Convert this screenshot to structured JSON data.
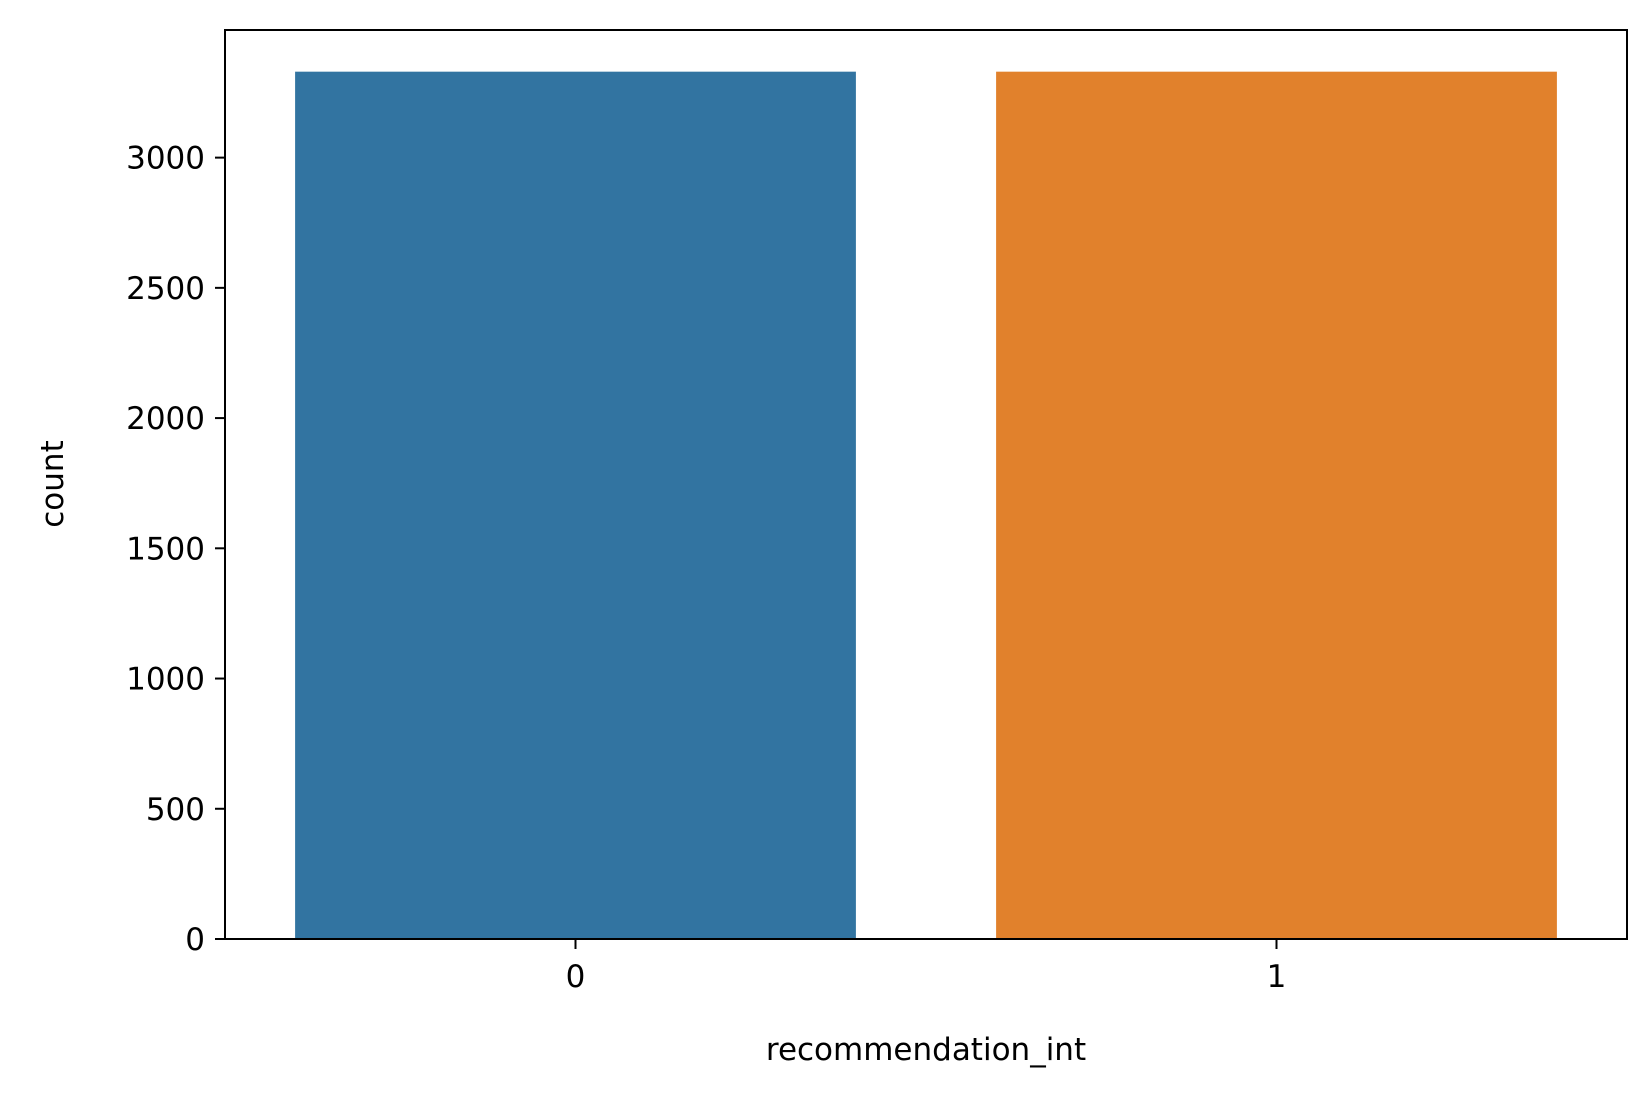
{
  "chart_data": {
    "type": "bar",
    "categories": [
      "0",
      "1"
    ],
    "values": [
      3330,
      3330
    ],
    "colors": [
      "#3274a1",
      "#e1812c"
    ],
    "xlabel": "recommendation_int",
    "ylabel": "count",
    "ylim": [
      0,
      3490
    ],
    "yticks": [
      0,
      500,
      1000,
      1500,
      2000,
      2500,
      3000
    ],
    "grid": false,
    "legend": false
  }
}
